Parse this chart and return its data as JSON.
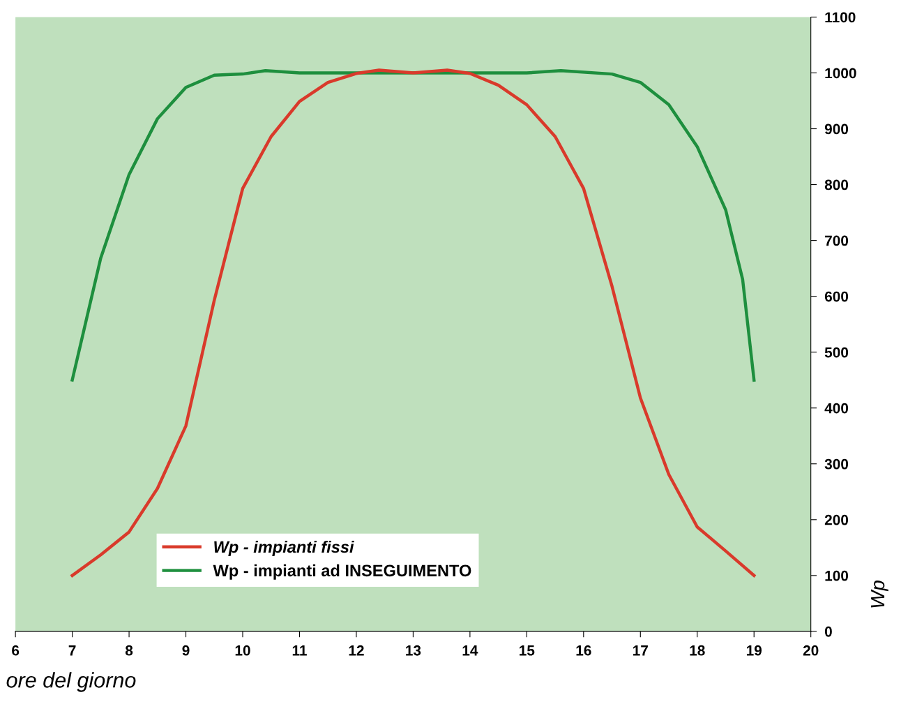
{
  "chart_data": {
    "type": "line",
    "xlabel": "ore del giorno",
    "ylabel": "Wp",
    "x": [
      7,
      7.5,
      8,
      8.5,
      9,
      9.5,
      10,
      10.5,
      11,
      11.5,
      12,
      12.4,
      13,
      13.6,
      14,
      14.5,
      15,
      15.5,
      16,
      16.5,
      17,
      17.5,
      18,
      18.5,
      19
    ],
    "series": [
      {
        "name": "Wp - impianti fissi",
        "color": "#d93a2b",
        "values": [
          100,
          137,
          178,
          256,
          368,
          593,
          793,
          886,
          949,
          983,
          999,
          1005,
          1000,
          1005,
          999,
          978,
          943,
          886,
          793,
          618,
          418,
          281,
          187,
          144,
          100
        ]
      },
      {
        "name": "Wp - impianti ad INSEGUIMENTO",
        "color": "#1e8f3e",
        "x": [
          7,
          7.5,
          8,
          8.5,
          9,
          9.5,
          10,
          10.4,
          11,
          12,
          13,
          14,
          15,
          15.6,
          16.5,
          17,
          17.5,
          18,
          18.5,
          18.8,
          19
        ],
        "values": [
          450,
          668,
          818,
          918,
          974,
          996,
          998,
          1004,
          1000,
          1000,
          1000,
          1000,
          1000,
          1004,
          998,
          983,
          943,
          868,
          755,
          630,
          450
        ]
      }
    ],
    "xlim": [
      6,
      20
    ],
    "xticks": [
      6,
      7,
      8,
      9,
      10,
      11,
      12,
      13,
      14,
      15,
      16,
      17,
      18,
      19,
      20
    ],
    "ylim": [
      0,
      1100
    ],
    "yticks": [
      0,
      100,
      200,
      300,
      400,
      500,
      600,
      700,
      800,
      900,
      1000,
      1100
    ],
    "grid": false,
    "legend": "bottom",
    "marker": "none",
    "line_style": "solid"
  }
}
